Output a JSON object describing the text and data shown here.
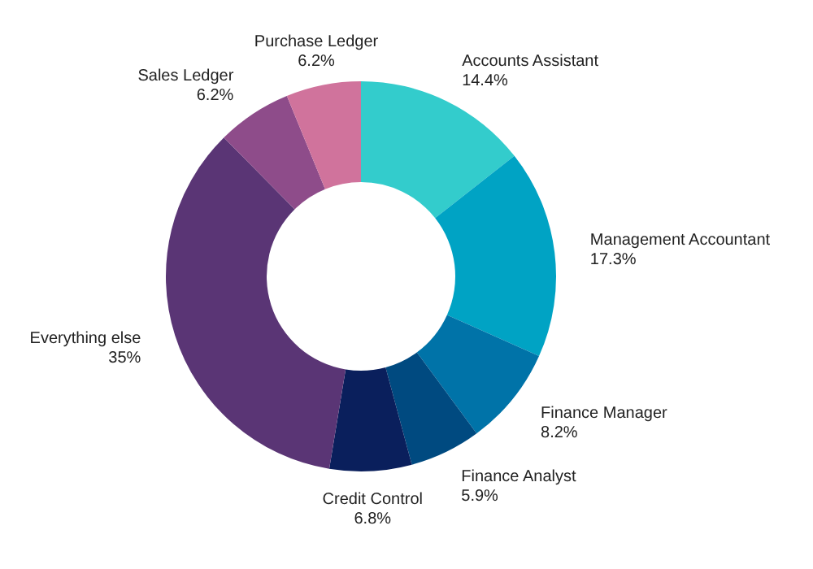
{
  "chart_data": {
    "type": "donut",
    "categories": [
      "Accounts Assistant",
      "Management Accountant",
      "Finance Manager",
      "Finance Analyst",
      "Credit Control",
      "Everything else",
      "Sales Ledger",
      "Purchase Ledger"
    ],
    "values": [
      14.4,
      17.3,
      8.2,
      5.9,
      6.8,
      35,
      6.2,
      6.2
    ],
    "value_labels": [
      "14.4%",
      "17.3%",
      "8.2%",
      "5.9%",
      "6.8%",
      "35%",
      "6.2%",
      "6.2%"
    ],
    "colors": [
      "#33cccc",
      "#00a3c4",
      "#0073a8",
      "#004a80",
      "#0a1f5c",
      "#5a3575",
      "#8e4c8a",
      "#d0739c"
    ]
  }
}
